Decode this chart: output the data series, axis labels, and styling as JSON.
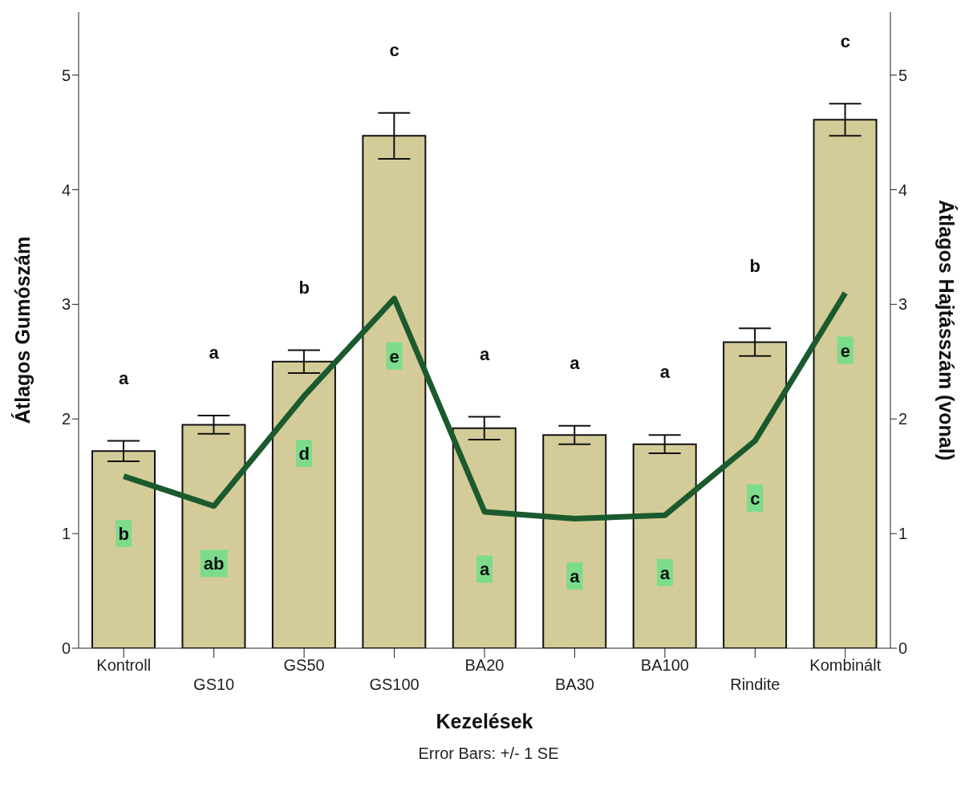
{
  "chart_data": {
    "type": "bar",
    "xlabel": "Kezelések",
    "ylabel": "Átlagos Gumószám",
    "y2label": "Átlagos Hajtásszám (vonal)",
    "categories": [
      "Kontroll",
      "GS10",
      "GS50",
      "GS100",
      "BA20",
      "BA30",
      "BA100",
      "Rindite",
      "Kombinált"
    ],
    "series": [
      {
        "color": "#d4cc98",
        "values": [
          1.72,
          1.95,
          2.5,
          4.47,
          1.92,
          1.86,
          1.78,
          2.67,
          4.61
        ],
        "errors": [
          0.09,
          0.08,
          0.1,
          0.2,
          0.1,
          0.08,
          0.08,
          0.12,
          0.14
        ]
      },
      {
        "type": "line",
        "axis": "y2",
        "color": "#1a5a2e",
        "values": [
          1.5,
          1.24,
          2.2,
          3.05,
          1.19,
          1.13,
          1.16,
          1.81,
          3.1
        ]
      }
    ],
    "ylim": [
      0,
      5.55
    ],
    "yticks": [
      0,
      1,
      2,
      3,
      4,
      5
    ],
    "y2lim": [
      0,
      5.55
    ],
    "y2ticks": [
      0,
      1,
      2,
      3,
      4,
      5
    ],
    "grid": false,
    "legend": false,
    "marker": "none",
    "annotations": [
      "a",
      "a",
      "b",
      "c",
      "a",
      "a",
      "a",
      "b",
      "c",
      "b",
      "ab",
      "d",
      "e",
      "a",
      "a",
      "a",
      "c",
      "e",
      "Error Bars: +/- 1 SE"
    ]
  }
}
